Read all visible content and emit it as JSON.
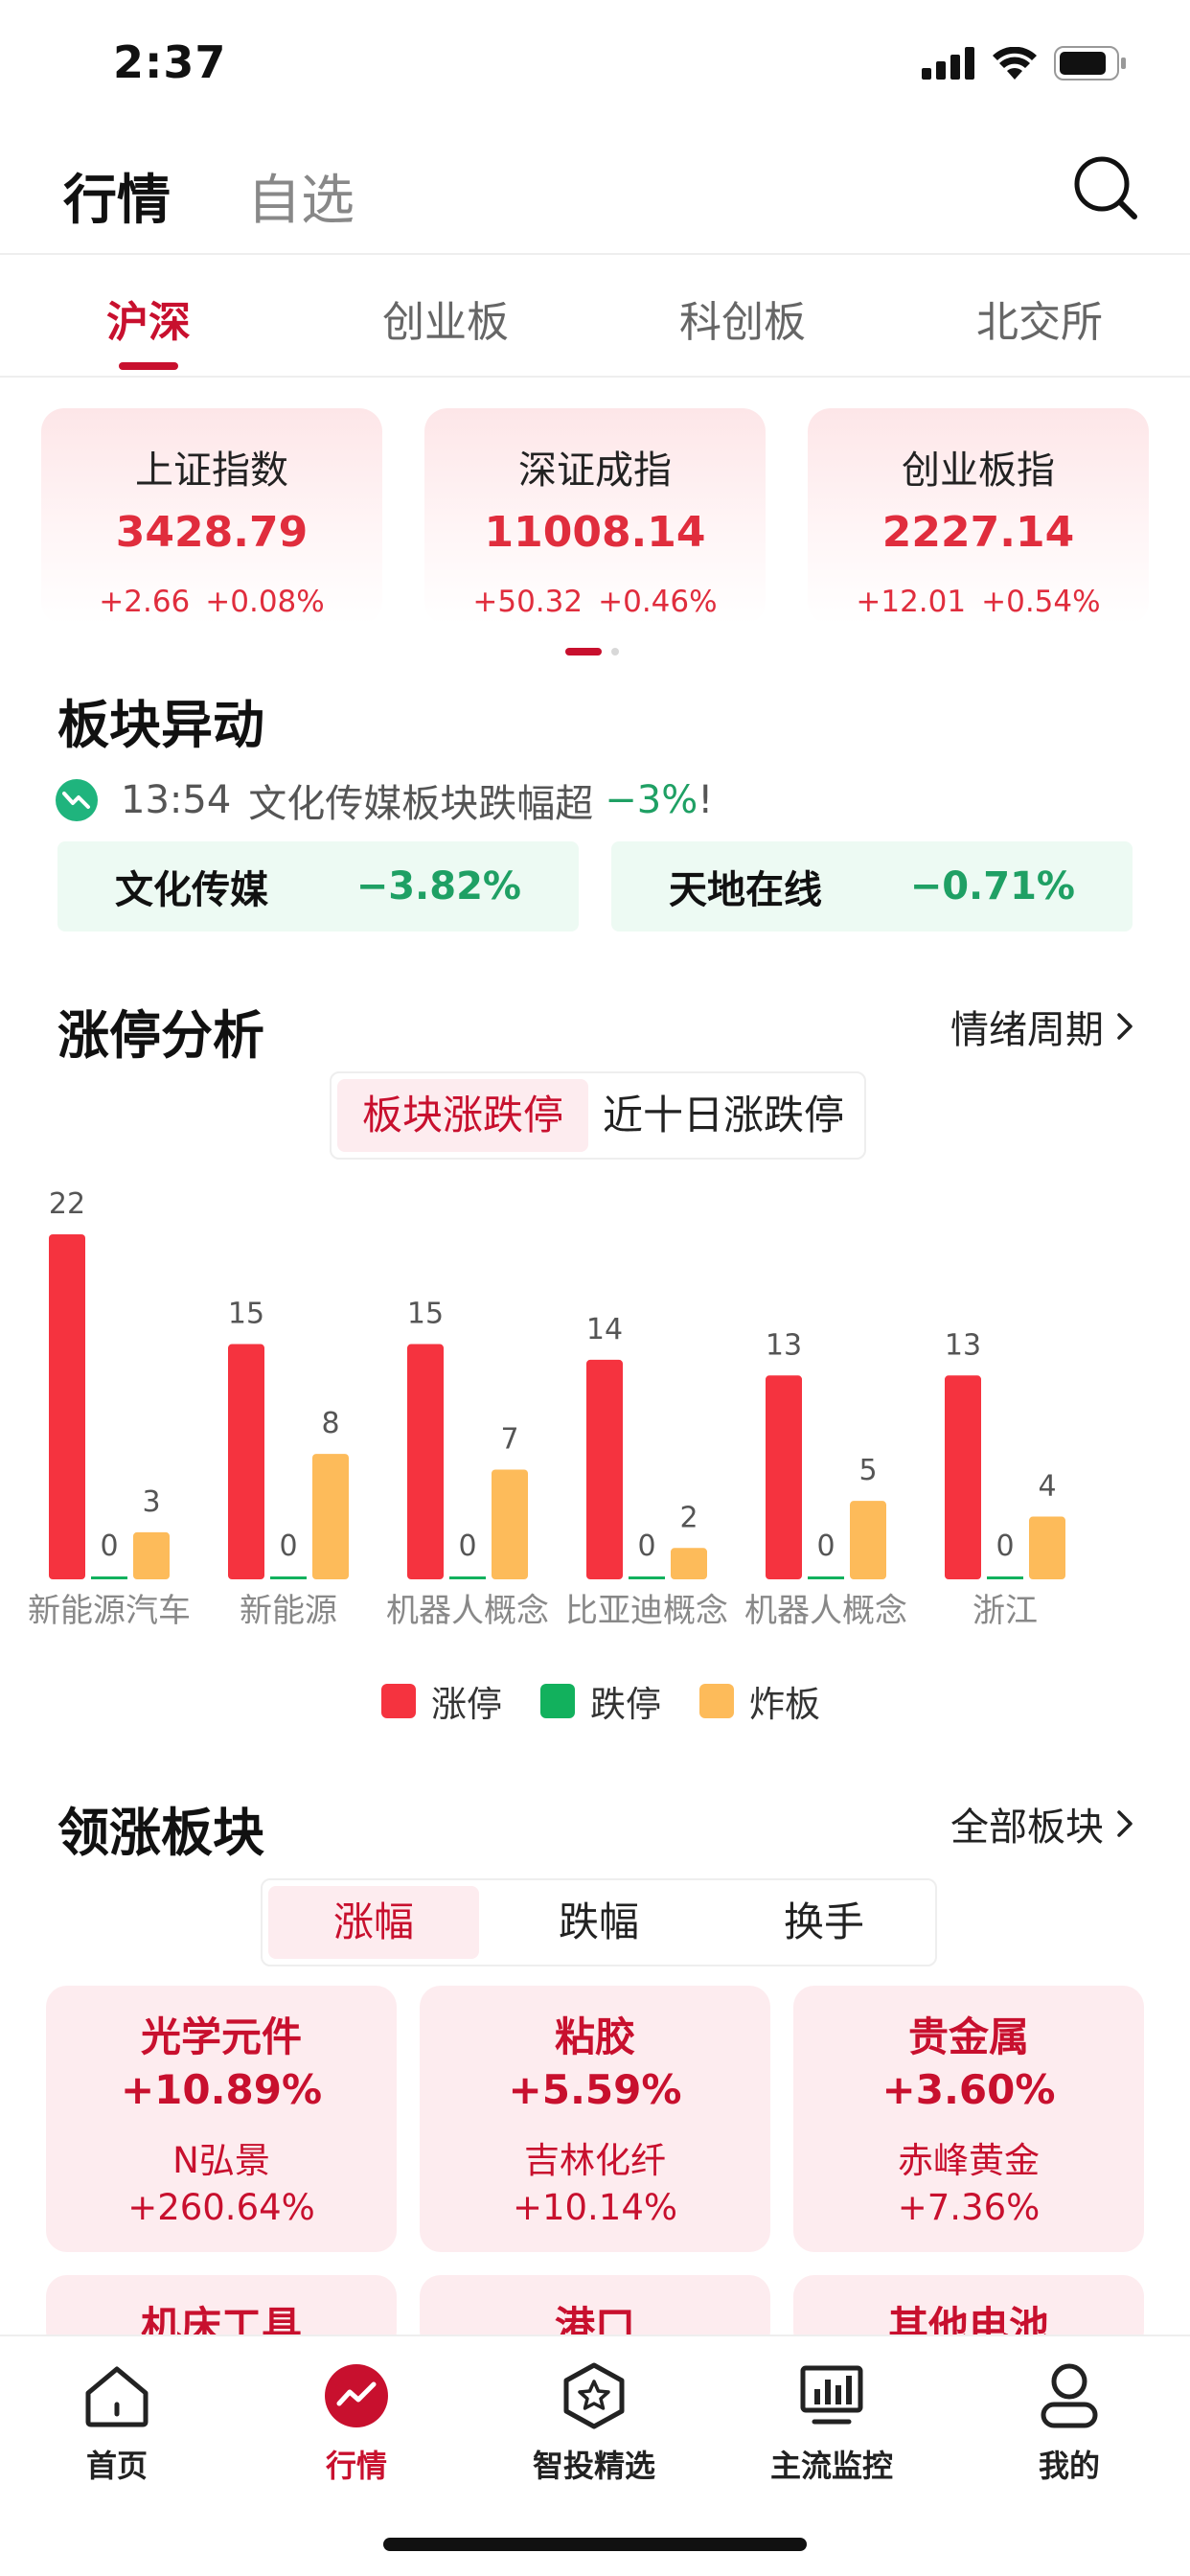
{
  "status_bar": {
    "time": "2:37"
  },
  "header": {
    "tab_active": "行情",
    "tab_inactive": "自选"
  },
  "market_tabs": [
    "沪深",
    "创业板",
    "科创板",
    "北交所"
  ],
  "indices": [
    {
      "name": "上证指数",
      "value": "3428.79",
      "change": "+2.66",
      "pct": "+0.08%"
    },
    {
      "name": "深证成指",
      "value": "11008.14",
      "change": "+50.32",
      "pct": "+0.46%"
    },
    {
      "name": "创业板指",
      "value": "2227.14",
      "change": "+12.01",
      "pct": "+0.54%"
    }
  ],
  "sector_move": {
    "title": "板块异动",
    "alert_time": "13:54",
    "alert_text": "文化传媒板块跌幅超",
    "alert_pct": "−3%",
    "alert_suffix": "!",
    "sectors": [
      {
        "name": "文化传媒",
        "pct": "−3.82%"
      },
      {
        "name": "天地在线",
        "pct": "−0.71%"
      }
    ]
  },
  "limit_analysis": {
    "title": "涨停分析",
    "link": "情绪周期",
    "toggle": [
      "板块涨跌停",
      "近十日涨跌停"
    ],
    "legend": [
      "涨停",
      "跌停",
      "炸板"
    ]
  },
  "chart_data": {
    "type": "bar",
    "categories": [
      "新能源汽车",
      "新能源",
      "机器人概念",
      "比亚迪概念",
      "机器人概念",
      "浙江"
    ],
    "series": [
      {
        "name": "涨停",
        "color": "#f5333f",
        "values": [
          22,
          15,
          15,
          14,
          13,
          13
        ]
      },
      {
        "name": "跌停",
        "color": "#12b15d",
        "values": [
          0,
          0,
          0,
          0,
          0,
          0
        ]
      },
      {
        "name": "炸板",
        "color": "#fdbb5a",
        "values": [
          3,
          8,
          7,
          2,
          5,
          4
        ]
      }
    ],
    "ylim": [
      0,
      22
    ],
    "legend_position": "bottom"
  },
  "leading": {
    "title": "领涨板块",
    "link": "全部板块",
    "toggle": [
      "涨幅",
      "跌幅",
      "换手"
    ],
    "cards": [
      {
        "name": "光学元件",
        "pct": "+10.89%",
        "stock": "N弘景",
        "stock_pct": "+260.64%"
      },
      {
        "name": "粘胶",
        "pct": "+5.59%",
        "stock": "吉林化纤",
        "stock_pct": "+10.14%"
      },
      {
        "name": "贵金属",
        "pct": "+3.60%",
        "stock": "赤峰黄金",
        "stock_pct": "+7.36%"
      }
    ],
    "partial_cards": [
      "机床工具",
      "港口",
      "其他电池"
    ]
  },
  "bottom_nav": [
    "首页",
    "行情",
    "智投精选",
    "主流监控",
    "我的"
  ],
  "colors": {
    "accent": "#c8102e",
    "up": "#e02d3d",
    "down": "#1fa064"
  }
}
